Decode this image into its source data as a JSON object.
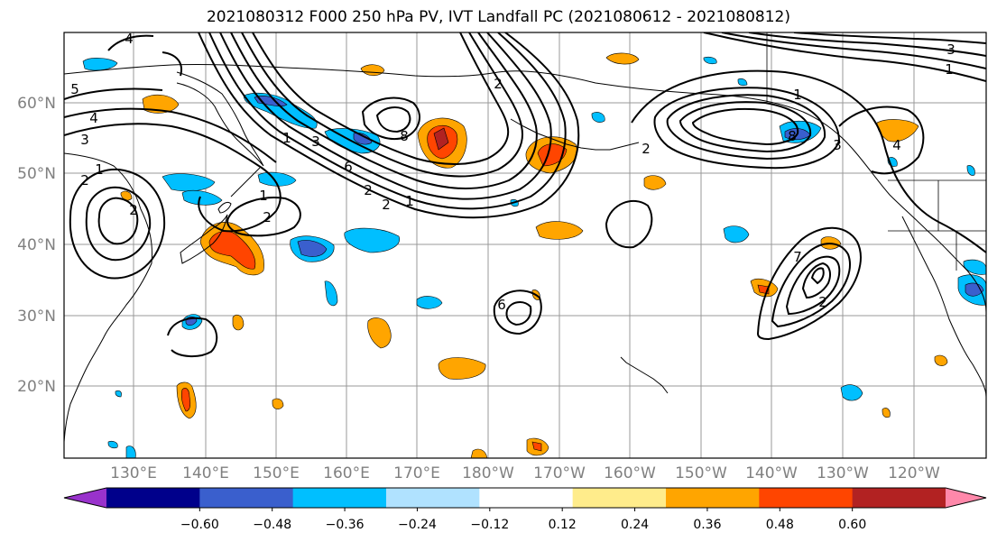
{
  "title": "2021080312 F000 250 hPa PV, IVT Landfall PC (2021080612 - 2021080812)",
  "lat_labels": [
    "60°N",
    "50°N",
    "40°N",
    "30°N",
    "20°N"
  ],
  "lon_labels": [
    "130°E",
    "140°E",
    "150°E",
    "160°E",
    "170°E",
    "180°W",
    "170°W",
    "160°W",
    "150°W",
    "140°W",
    "130°W",
    "120°W"
  ],
  "colorbar": {
    "ticks": [
      "−0.60",
      "−0.48",
      "−0.36",
      "−0.24",
      "−0.12",
      "0.12",
      "0.24",
      "0.36",
      "0.48",
      "0.60"
    ],
    "colors": [
      "#9932cc",
      "#00008b",
      "#3a5fcd",
      "#00bfff",
      "#b0e2ff",
      "#ffffff",
      "#ffec8b",
      "#ffa500",
      "#ff4500",
      "#b22222",
      "#ff88aa"
    ]
  },
  "contour_labels": [
    "4",
    "5",
    "4",
    "3",
    "1",
    "2",
    "2",
    "8",
    "1",
    "2",
    "2",
    "1",
    "2",
    "6",
    "3",
    "1",
    "2",
    "3",
    "4",
    "8",
    "7",
    "2",
    "3",
    "1",
    "6",
    "2",
    "1"
  ],
  "colors": {
    "land_outline": "#000000",
    "grid": "#999999",
    "contour": "#000000"
  }
}
